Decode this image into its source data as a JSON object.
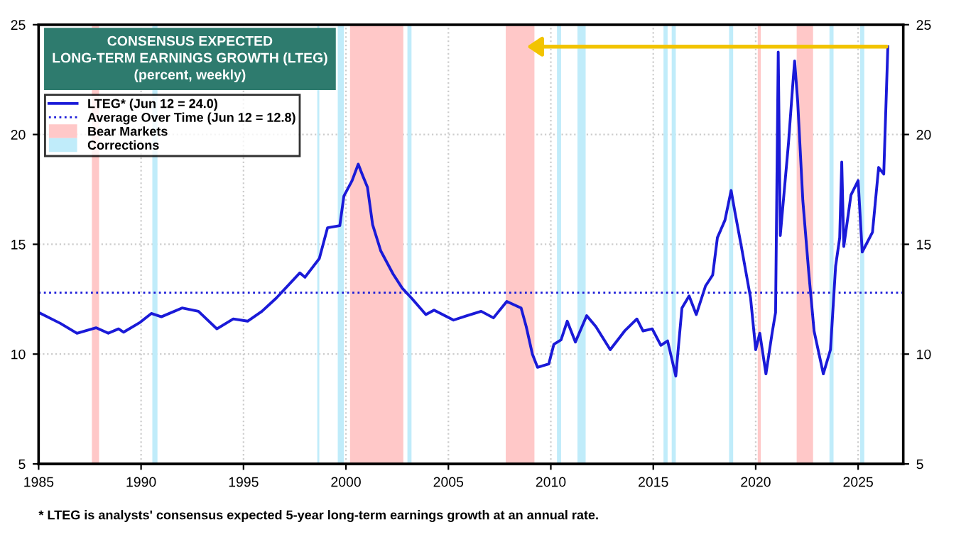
{
  "chart_data": {
    "type": "line",
    "title": "CONSENSUS EXPECTED\nLONG-TERM EARNINGS GROWTH (LTEG)",
    "subtitle": "(percent, weekly)",
    "series": [
      {
        "name": "LTEG* (Jun 12 = 24.0)",
        "color": "#1a1ad8",
        "x": [
          1985.0,
          1986.06,
          1986.87,
          1987.8,
          1988.4,
          1988.9,
          1989.15,
          1989.96,
          1990.5,
          1990.99,
          1992.0,
          1992.8,
          1993.7,
          1994.5,
          1995.2,
          1995.9,
          1996.6,
          1997.75,
          1998.0,
          1998.7,
          1999.1,
          1999.7,
          1999.9,
          2000.3,
          2000.6,
          2000.83,
          2001.05,
          2001.3,
          2001.7,
          2002.3,
          2002.75,
          2003.2,
          2003.9,
          2004.3,
          2005.25,
          2005.9,
          2006.6,
          2007.2,
          2007.85,
          2008.55,
          2008.8,
          2009.1,
          2009.35,
          2009.9,
          2010.15,
          2010.5,
          2010.8,
          2011.2,
          2011.75,
          2012.2,
          2012.9,
          2013.6,
          2014.2,
          2014.5,
          2014.95,
          2015.37,
          2015.7,
          2015.9,
          2016.1,
          2016.4,
          2016.75,
          2017.1,
          2017.55,
          2017.9,
          2018.13,
          2018.5,
          2018.8,
          2019.0,
          2019.3,
          2019.75,
          2020.0,
          2020.2,
          2020.5,
          2020.8,
          2020.97,
          2021.1,
          2021.2,
          2021.6,
          2021.8,
          2021.9,
          2022.05,
          2022.3,
          2022.6,
          2022.85,
          2023.3,
          2023.65,
          2023.9,
          2024.1,
          2024.2,
          2024.3,
          2024.65,
          2025.0,
          2025.2,
          2025.7,
          2026.0,
          2026.25,
          2026.45
        ],
        "values": [
          11.9,
          11.4,
          10.95,
          11.2,
          10.95,
          11.15,
          11.0,
          11.45,
          11.85,
          11.7,
          12.1,
          11.95,
          11.15,
          11.6,
          11.5,
          11.95,
          12.55,
          13.7,
          13.5,
          14.35,
          15.75,
          15.85,
          17.2,
          17.9,
          18.65,
          18.1,
          17.6,
          15.9,
          14.7,
          13.65,
          13.0,
          12.55,
          11.8,
          12.0,
          11.55,
          11.75,
          11.95,
          11.65,
          12.4,
          12.1,
          11.25,
          10.0,
          9.4,
          9.55,
          10.45,
          10.65,
          11.5,
          10.55,
          11.75,
          11.25,
          10.2,
          11.05,
          11.6,
          11.05,
          11.15,
          10.4,
          10.6,
          9.8,
          9.0,
          12.1,
          12.65,
          11.8,
          13.1,
          13.6,
          15.3,
          16.1,
          17.45,
          16.4,
          14.9,
          12.55,
          10.2,
          10.95,
          9.1,
          10.95,
          11.9,
          23.75,
          15.4,
          19.6,
          22.15,
          23.35,
          21.5,
          17.0,
          13.6,
          11.05,
          9.1,
          10.2,
          14.0,
          15.3,
          18.75,
          14.9,
          17.25,
          17.9,
          14.65,
          15.55,
          18.5,
          18.2,
          24.0
        ]
      }
    ],
    "ref_lines": [
      {
        "axis": "y",
        "value": 12.8,
        "label": "Average Over Time (Jun 12 = 12.8)",
        "color": "#1a1ad8",
        "line_style": "dotted"
      }
    ],
    "bands": [
      {
        "axis": "x",
        "from": 1987.6,
        "to": 1987.95,
        "label": "Bear Markets",
        "color": "#ffc8c8"
      },
      {
        "axis": "x",
        "from": 2000.2,
        "to": 2002.8,
        "color": "#ffc8c8"
      },
      {
        "axis": "x",
        "from": 2007.8,
        "to": 2009.2,
        "color": "#ffc8c8"
      },
      {
        "axis": "x",
        "from": 2020.1,
        "to": 2020.25,
        "color": "#ffc8c8"
      },
      {
        "axis": "x",
        "from": 2022.0,
        "to": 2022.8,
        "color": "#ffc8c8"
      },
      {
        "axis": "x",
        "from": 1990.55,
        "to": 1990.8,
        "label": "Corrections",
        "color": "#c0ecfa"
      },
      {
        "axis": "x",
        "from": 1998.6,
        "to": 1998.7,
        "color": "#c0ecfa"
      },
      {
        "axis": "x",
        "from": 1999.6,
        "to": 1999.9,
        "color": "#c0ecfa"
      },
      {
        "axis": "x",
        "from": 2003.0,
        "to": 2003.2,
        "color": "#c0ecfa"
      },
      {
        "axis": "x",
        "from": 2010.3,
        "to": 2010.5,
        "color": "#c0ecfa"
      },
      {
        "axis": "x",
        "from": 2011.3,
        "to": 2011.7,
        "color": "#c0ecfa"
      },
      {
        "axis": "x",
        "from": 2015.5,
        "to": 2015.7,
        "color": "#c0ecfa"
      },
      {
        "axis": "x",
        "from": 2015.9,
        "to": 2016.1,
        "color": "#c0ecfa"
      },
      {
        "axis": "x",
        "from": 2018.7,
        "to": 2018.9,
        "color": "#c0ecfa"
      },
      {
        "axis": "x",
        "from": 2023.6,
        "to": 2023.8,
        "color": "#c0ecfa"
      },
      {
        "axis": "x",
        "from": 2025.1,
        "to": 2025.3,
        "color": "#c0ecfa"
      }
    ],
    "xlim": [
      1985,
      2027.2
    ],
    "xticks": [
      1985,
      1990,
      1995,
      2000,
      2005,
      2010,
      2015,
      2020,
      2025
    ],
    "ylim": [
      5,
      25
    ],
    "yticks": [
      5,
      10,
      15,
      20,
      25
    ],
    "y2lim": [
      5,
      25
    ],
    "y2ticks": [
      5,
      10,
      15,
      20,
      25
    ],
    "grid": true,
    "legend": "top left",
    "annotations": [
      "* LTEG is analysts' consensus expected 5-year long-term earnings growth at an annual rate."
    ]
  }
}
